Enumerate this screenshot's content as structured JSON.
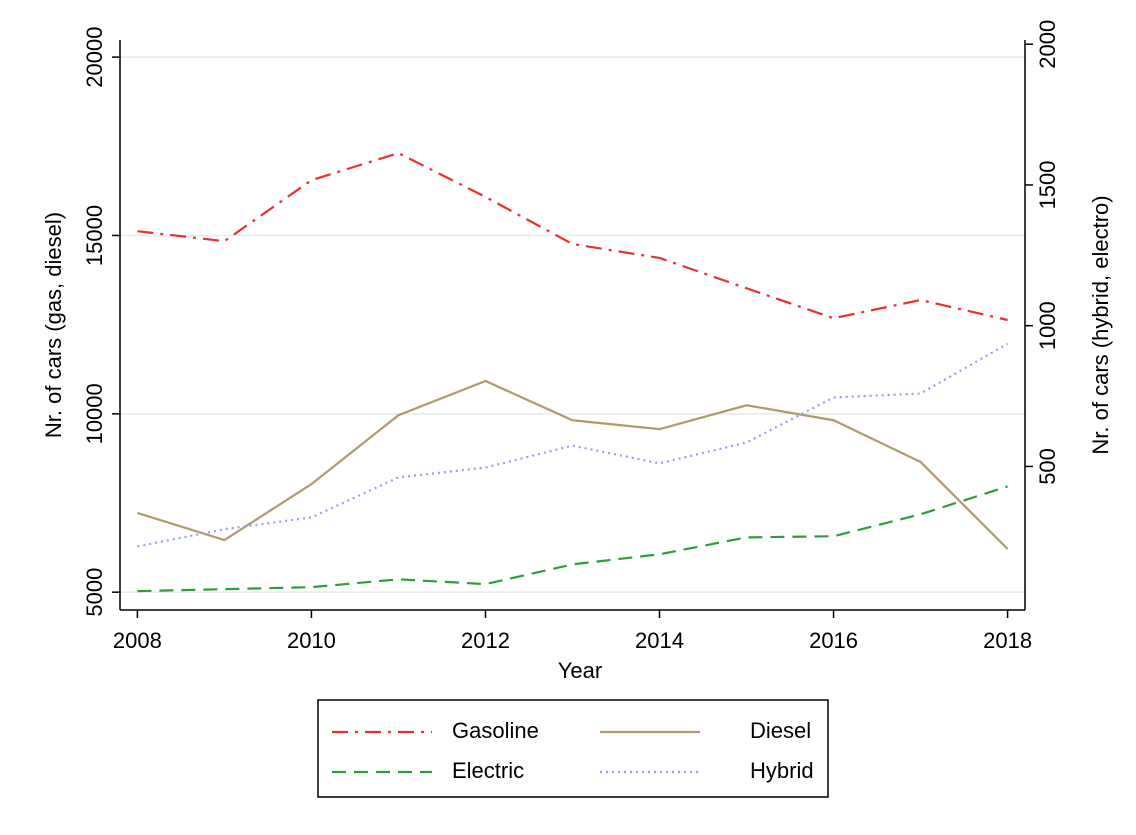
{
  "chart_data": {
    "type": "line",
    "x_label": "Year",
    "y_label": "Nr. of cars (gas, diesel)",
    "y2_label": "Nr. of cars (hybrid, electro)",
    "x": [
      2008,
      2009,
      2010,
      2011,
      2012,
      2013,
      2014,
      2015,
      2016,
      2017,
      2018
    ],
    "xlim": [
      2007.8,
      2018.2
    ],
    "xticks": [
      2008,
      2010,
      2012,
      2014,
      2016,
      2018
    ],
    "ylim": [
      4500,
      20480
    ],
    "yticks": [
      5000,
      10000,
      15000,
      20000
    ],
    "y2lim": [
      -10,
      2015
    ],
    "y2ticks": [
      500,
      1000,
      1500,
      2000
    ],
    "grid": true,
    "series": [
      {
        "name": "Gasoline",
        "color": "#e8302e",
        "dash": "dash-dot",
        "values": [
          15120,
          14840,
          16550,
          17310,
          16080,
          14760,
          14370,
          13520,
          12680,
          13190,
          12630
        ]
      },
      {
        "name": "Diesel",
        "color": "#b09a6a",
        "dash": "solid",
        "values": [
          7220,
          6460,
          8030,
          9960,
          10920,
          9820,
          9570,
          10240,
          9820,
          8650,
          6210
        ]
      },
      {
        "name": "Electric",
        "color": "#2c9e3a",
        "dash": "dash",
        "axis": "y2",
        "values": [
          57,
          64,
          71,
          99,
          82,
          152,
          188,
          248,
          252,
          330,
          429
        ]
      },
      {
        "name": "Hybrid",
        "color": "#9a9af0",
        "dash": "dot",
        "axis": "y2",
        "values": [
          216,
          277,
          319,
          461,
          496,
          574,
          511,
          585,
          745,
          759,
          936
        ]
      }
    ]
  }
}
